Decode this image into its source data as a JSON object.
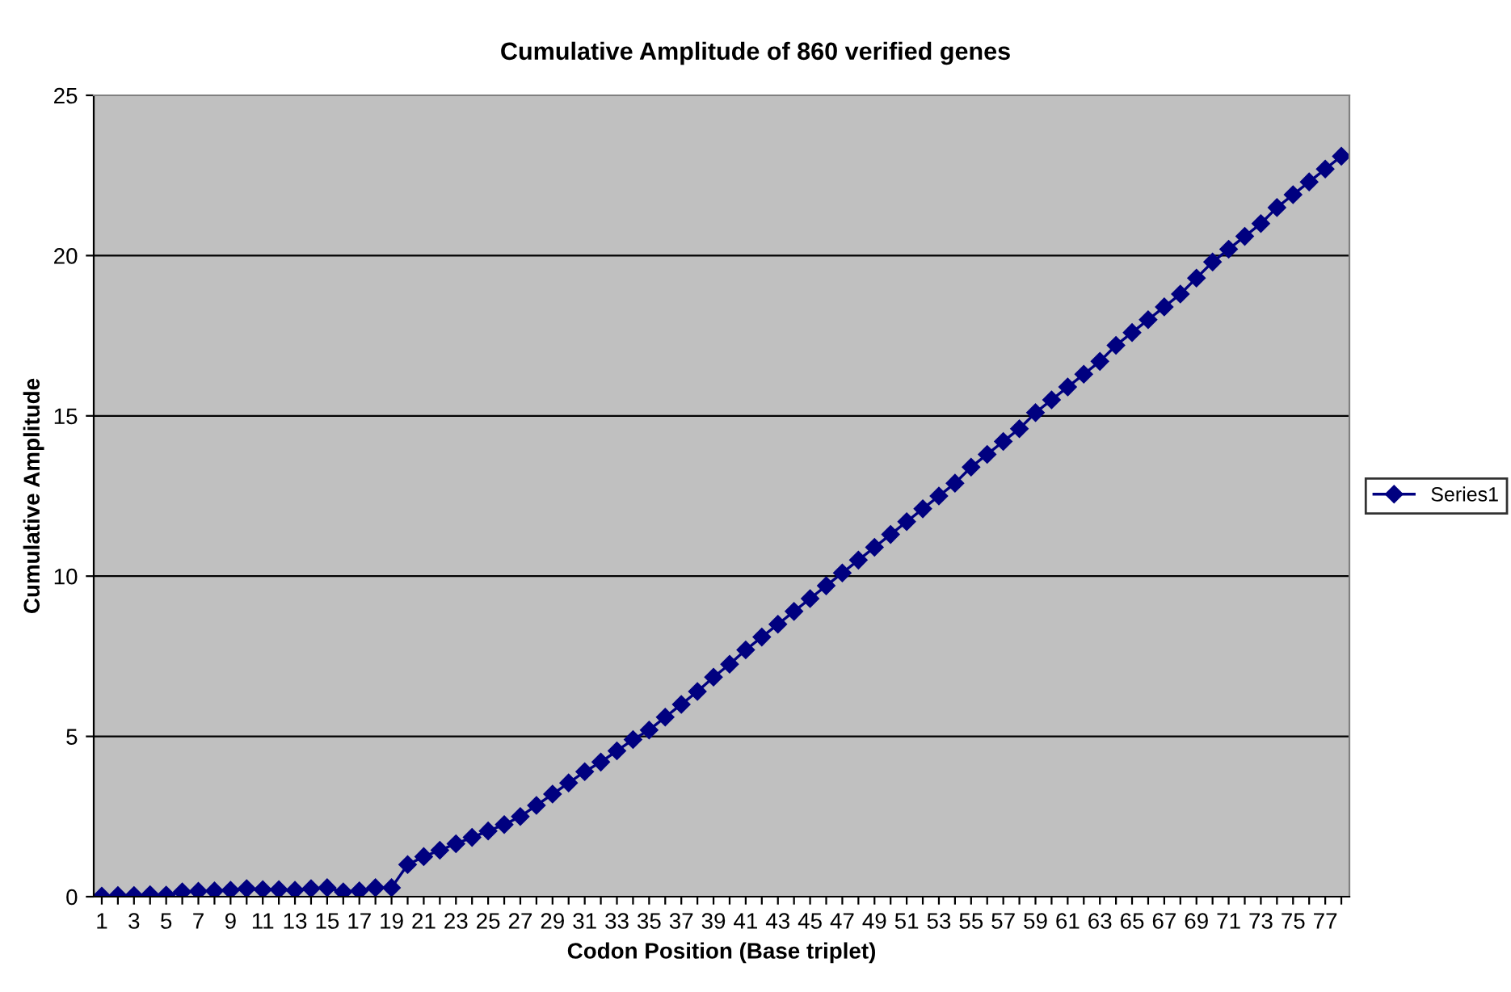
{
  "chart_data": {
    "type": "line",
    "title": "Cumulative Amplitude of 860 verified genes",
    "xlabel": "Codon Position (Base triplet)",
    "ylabel": "Cumulative Amplitude",
    "categories": [
      "1",
      null,
      "3",
      null,
      "5",
      null,
      "7",
      null,
      "9",
      null,
      "11",
      null,
      "13",
      null,
      "15",
      null,
      "17",
      null,
      "19",
      null,
      "21",
      null,
      "23",
      null,
      "25",
      null,
      "27",
      null,
      "29",
      null,
      "31",
      null,
      "33",
      null,
      "35",
      null,
      "37",
      null,
      "39",
      null,
      "41",
      null,
      "43",
      null,
      "45",
      null,
      "47",
      null,
      "49",
      null,
      "51",
      null,
      "53",
      null,
      "55",
      null,
      "57",
      null,
      "59",
      null,
      "61",
      null,
      "63",
      null,
      "65",
      null,
      "67",
      null,
      "69",
      null,
      "71",
      null,
      "73",
      null,
      "75",
      null,
      "77",
      null
    ],
    "series": [
      {
        "name": "Series1",
        "color": "#000080",
        "values": [
          0.02,
          0.04,
          0.04,
          0.06,
          0.05,
          0.15,
          0.17,
          0.18,
          0.2,
          0.25,
          0.22,
          0.22,
          0.2,
          0.25,
          0.28,
          0.15,
          0.18,
          0.28,
          0.28,
          1.0,
          1.25,
          1.45,
          1.65,
          1.85,
          2.05,
          2.25,
          2.5,
          2.85,
          3.2,
          3.55,
          3.9,
          4.2,
          4.55,
          4.9,
          5.2,
          5.6,
          6.0,
          6.4,
          6.85,
          7.25,
          7.7,
          8.1,
          8.5,
          8.9,
          9.3,
          9.7,
          10.1,
          10.5,
          10.9,
          11.3,
          11.7,
          12.1,
          12.5,
          12.9,
          13.4,
          13.8,
          14.2,
          14.6,
          15.1,
          15.5,
          15.9,
          16.3,
          16.7,
          17.2,
          17.6,
          18.0,
          18.4,
          18.8,
          19.3,
          19.8,
          20.2,
          20.6,
          21.0,
          21.5,
          21.9,
          22.3,
          22.7,
          23.1
        ]
      }
    ],
    "ylim": [
      0,
      25
    ],
    "yticks": [
      0,
      5,
      10,
      15,
      20,
      25
    ],
    "grid": "y",
    "legend": "right",
    "marker": "diamond",
    "line_style": "solid"
  }
}
